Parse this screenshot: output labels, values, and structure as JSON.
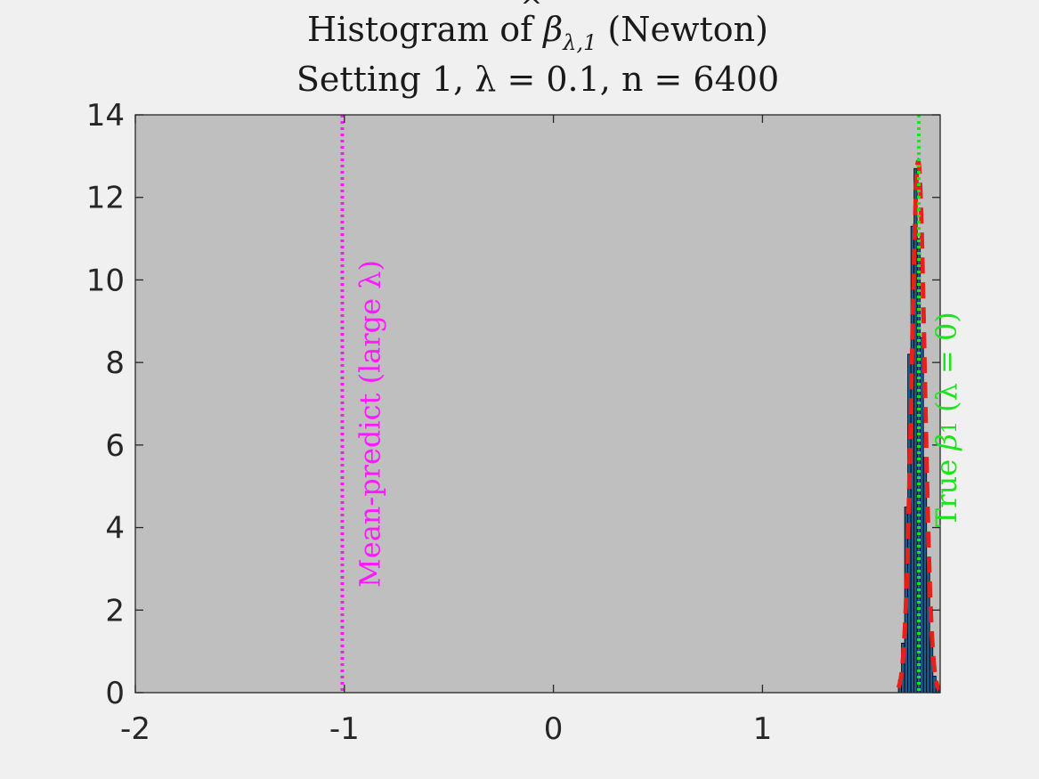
{
  "chart_data": {
    "type": "bar",
    "title_line1_prefix": "Histogram of ",
    "title_beta": "β",
    "title_hat": "^",
    "title_sub": "λ,1",
    "title_line1_suffix": " (Newton)",
    "title_line2": "Setting 1, λ = 0.1, n = 6400",
    "xlim": [
      -2,
      1.85
    ],
    "ylim": [
      0,
      14
    ],
    "xticks": [
      -2,
      -1,
      0,
      1
    ],
    "xtick_labels": [
      "-2",
      "-1",
      "0",
      "1"
    ],
    "yticks": [
      0,
      2,
      4,
      6,
      8,
      10,
      12,
      14
    ],
    "ytick_labels": [
      "0",
      "2",
      "4",
      "6",
      "8",
      "10",
      "12",
      "14"
    ],
    "grid": false,
    "background_color": "#bfbfbf",
    "figure_color": "#f0f0f0",
    "bar_color": "#1f5a8c",
    "bar_edge_color": "#000000",
    "density_color": "#e8201a",
    "bins": {
      "edges": [
        1.65,
        1.665,
        1.68,
        1.695,
        1.71,
        1.725,
        1.74,
        1.755,
        1.77,
        1.785,
        1.8,
        1.815,
        1.83,
        1.845
      ],
      "values": [
        0.3,
        1.2,
        4.5,
        8.2,
        11.3,
        12.7,
        11.0,
        8.6,
        5.7,
        3.2,
        1.3,
        0.4,
        0.1
      ]
    },
    "density_curve": {
      "mean": 1.745,
      "sd": 0.031,
      "x_from": 1.65,
      "x_to": 1.845,
      "style": "dashed"
    },
    "vlines": [
      {
        "x": -1.01,
        "color": "#ff19ff",
        "style": "dotted",
        "label": "Mean-predict (large λ)"
      },
      {
        "x": 1.748,
        "color": "#19e619",
        "style": "dotted",
        "label_prefix": "True ",
        "label_beta": "β",
        "label_sub": "1",
        "label_suffix": " (λ = 0)"
      }
    ]
  }
}
